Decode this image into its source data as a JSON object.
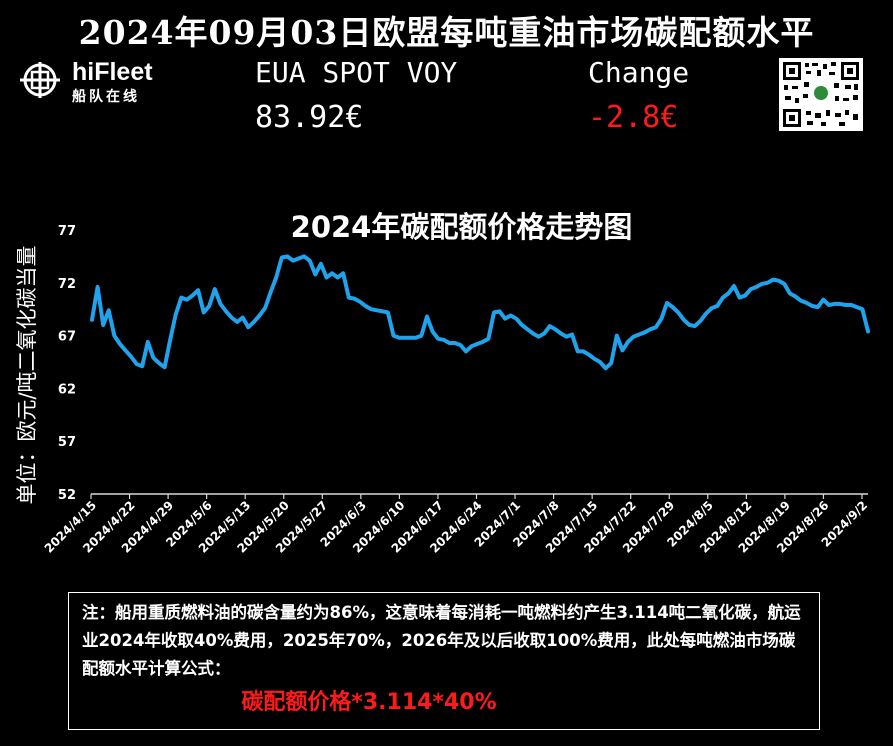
{
  "header": {
    "title": "2024年09月03日欧盟每吨重油市场碳配额水平",
    "logo_word": "hiFleet",
    "logo_sub": "船队在线",
    "eua_label": "EUA SPOT VOY",
    "eua_value": "83.92€",
    "change_label": "Change",
    "change_value": "-2.8€"
  },
  "colors": {
    "background": "#000000",
    "line": "#1fa3ec",
    "negative": "#ff1a1a",
    "text": "#ffffff"
  },
  "chart_data": {
    "type": "line",
    "title": "2024年碳配额价格走势图",
    "ylabel": "单位：欧元/吨二氧化碳当量",
    "ylim": [
      52,
      77
    ],
    "yticks": [
      "77",
      "72",
      "67",
      "62",
      "57",
      "52"
    ],
    "xticks": [
      "2024/4/15",
      "2024/4/22",
      "2024/4/29",
      "2024/5/6",
      "2024/5/13",
      "2024/5/20",
      "2024/5/27",
      "2024/6/3",
      "2024/6/10",
      "2024/6/17",
      "2024/6/24",
      "2024/7/1",
      "2024/7/8",
      "2024/7/15",
      "2024/7/22",
      "2024/7/29",
      "2024/8/5",
      "2024/8/12",
      "2024/8/19",
      "2024/8/26",
      "2024/9/2"
    ],
    "series": [
      {
        "values": [
          68.5,
          71.6,
          68.0,
          69.4,
          67.0,
          66.2,
          65.6,
          65.0,
          64.3,
          64.1,
          66.4,
          64.9,
          64.4,
          64.0,
          66.6,
          69.0,
          70.6,
          70.4,
          70.8,
          71.3,
          69.2,
          69.8,
          71.4,
          70.0,
          69.3,
          68.7,
          68.3,
          68.7,
          67.8,
          68.3,
          68.9,
          69.6,
          71.1,
          72.5,
          74.4,
          74.5,
          74.1,
          74.3,
          74.5,
          74.1,
          72.8,
          73.8,
          72.5,
          72.9,
          72.5,
          72.9,
          70.6,
          70.5,
          70.2,
          69.8,
          69.5,
          69.4,
          69.3,
          69.2,
          67.0,
          66.8,
          66.8,
          66.8,
          66.8,
          67.0,
          68.8,
          67.4,
          66.7,
          66.6,
          66.3,
          66.3,
          66.1,
          65.5,
          66.0,
          66.2,
          66.4,
          66.7,
          69.2,
          69.3,
          68.6,
          68.9,
          68.6,
          68.0,
          67.6,
          67.2,
          66.9,
          67.2,
          67.9,
          67.6,
          67.2,
          66.9,
          67.1,
          65.5,
          65.5,
          65.2,
          64.8,
          64.5,
          63.9,
          64.4,
          67.0,
          65.6,
          66.4,
          66.9,
          67.1,
          67.3,
          67.6,
          67.8,
          68.6,
          70.1,
          69.7,
          69.2,
          68.5,
          68.0,
          67.9,
          68.4,
          69.1,
          69.6,
          69.8,
          70.6,
          71.0,
          71.7,
          70.6,
          70.8,
          71.4,
          71.6,
          71.9,
          72.0,
          72.3,
          72.2,
          71.9,
          71.0,
          70.7,
          70.3,
          70.1,
          69.8,
          69.7,
          70.4,
          69.9,
          70.0,
          70.0,
          69.9,
          69.9,
          69.7,
          69.5,
          67.4
        ]
      }
    ]
  },
  "note": {
    "text": "注：船用重质燃料油的碳含量约为86%，这意味着每消耗一吨燃料约产生3.114吨二氧化碳，航运业2024年收取40%费用，2025年70%，2026年及以后收取100%费用，此处每吨燃油市场碳配额水平计算公式：",
    "formula": "碳配额价格*3.114*40%"
  }
}
